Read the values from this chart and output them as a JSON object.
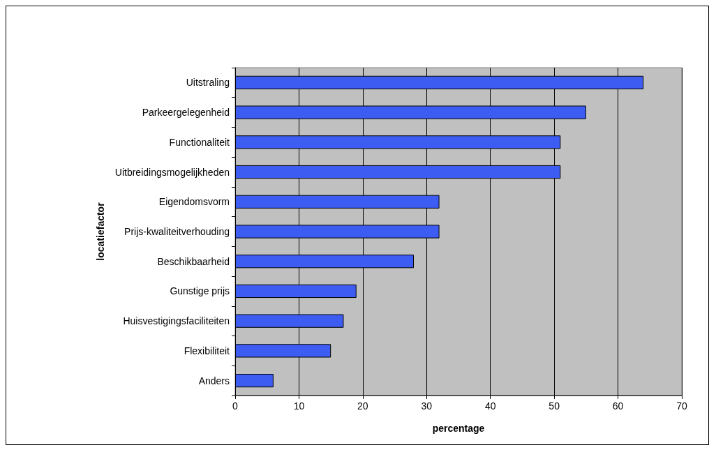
{
  "chart_data": {
    "type": "bar",
    "orientation": "horizontal",
    "xlabel": "percentage",
    "ylabel": "locatiefactor",
    "categories": [
      "Uitstraling",
      "Parkeergelegenheid",
      "Functionaliteit",
      "Uitbreidingsmogelijkheden",
      "Eigendomsvorm",
      "Prijs-kwaliteitverhouding",
      "Beschikbaarheid",
      "Gunstige prijs",
      "Huisvestigingsfaciliteiten",
      "Flexibiliteit",
      "Anders"
    ],
    "values": [
      64,
      55,
      51,
      51,
      32,
      32,
      28,
      19,
      17,
      15,
      6
    ],
    "color": "#3d5cf2",
    "xlim": [
      0,
      70
    ],
    "xticks": [
      0,
      10,
      20,
      30,
      40,
      50,
      60,
      70
    ],
    "grid": "x"
  }
}
